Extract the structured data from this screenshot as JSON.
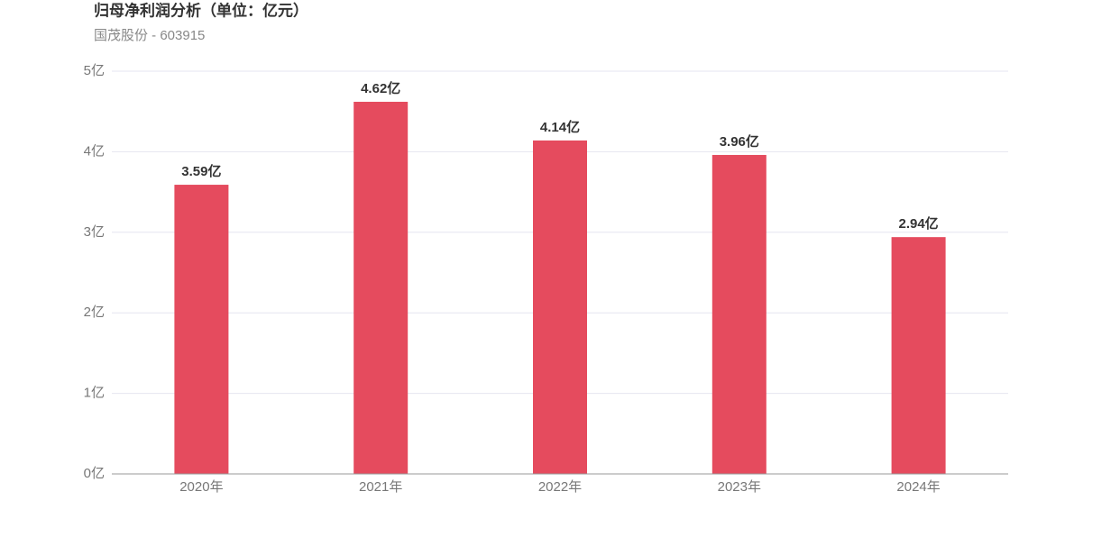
{
  "chart_data": {
    "type": "bar",
    "title": "归母净利润分析（单位：亿元）",
    "subtitle": "国茂股份 - 603915",
    "categories": [
      "2020年",
      "2021年",
      "2022年",
      "2023年",
      "2024年"
    ],
    "values": [
      3.59,
      4.62,
      4.14,
      3.96,
      2.94
    ],
    "value_labels": [
      "3.59亿",
      "4.62亿",
      "4.14亿",
      "3.96亿",
      "2.94亿"
    ],
    "color": "#e54b5e",
    "ylim": [
      0,
      5
    ],
    "yticks": [
      {
        "value": 0,
        "label": "0亿"
      },
      {
        "value": 1,
        "label": "1亿"
      },
      {
        "value": 2,
        "label": "2亿"
      },
      {
        "value": 3,
        "label": "3亿"
      },
      {
        "value": 4,
        "label": "4亿"
      },
      {
        "value": 5,
        "label": "5亿"
      }
    ],
    "grid": true
  }
}
